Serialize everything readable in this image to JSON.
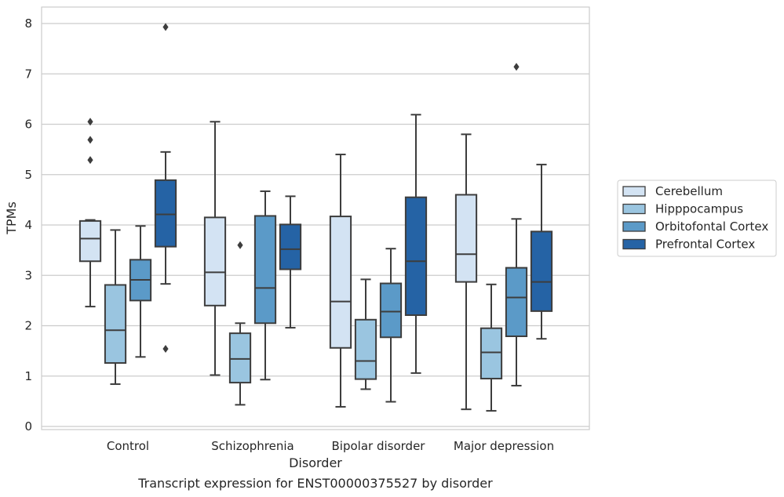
{
  "chart_data": {
    "type": "box",
    "title": "Transcript expression for ENST00000375527 by disorder",
    "xlabel": "Disorder",
    "ylabel": "TPMs",
    "ylim": [
      -0.07,
      8.3
    ],
    "yticks": [
      0,
      1,
      2,
      3,
      4,
      5,
      6,
      7,
      8
    ],
    "grid": true,
    "legend_position": "right",
    "categories": [
      "Control",
      "Schizophrenia",
      "Bipolar disorder",
      "Major depression"
    ],
    "series": [
      {
        "name": "Cerebellum",
        "color": "#d3e3f3",
        "boxes": [
          {
            "whislo": 2.38,
            "q1": 3.28,
            "med": 3.73,
            "q3": 4.08,
            "whishi": 4.1,
            "fliers": [
              6.05,
              5.69,
              5.29
            ]
          },
          {
            "whislo": 1.02,
            "q1": 2.4,
            "med": 3.06,
            "q3": 4.15,
            "whishi": 6.05,
            "fliers": []
          },
          {
            "whislo": 0.39,
            "q1": 1.56,
            "med": 2.48,
            "q3": 4.17,
            "whishi": 5.4,
            "fliers": []
          },
          {
            "whislo": 0.34,
            "q1": 2.87,
            "med": 3.42,
            "q3": 4.6,
            "whishi": 5.8,
            "fliers": []
          }
        ]
      },
      {
        "name": "Hipppocampus",
        "color": "#9ac5e0",
        "boxes": [
          {
            "whislo": 0.84,
            "q1": 1.26,
            "med": 1.91,
            "q3": 2.81,
            "whishi": 3.9,
            "fliers": []
          },
          {
            "whislo": 0.43,
            "q1": 0.87,
            "med": 1.34,
            "q3": 1.85,
            "whishi": 2.05,
            "fliers": [
              3.6
            ]
          },
          {
            "whislo": 0.74,
            "q1": 0.94,
            "med": 1.3,
            "q3": 2.12,
            "whishi": 2.92,
            "fliers": []
          },
          {
            "whislo": 0.31,
            "q1": 0.95,
            "med": 1.47,
            "q3": 1.95,
            "whishi": 2.82,
            "fliers": []
          }
        ]
      },
      {
        "name": "Orbitofontal Cortex",
        "color": "#5b9ac8",
        "boxes": [
          {
            "whislo": 1.38,
            "q1": 2.5,
            "med": 2.91,
            "q3": 3.31,
            "whishi": 3.98,
            "fliers": []
          },
          {
            "whislo": 0.93,
            "q1": 2.05,
            "med": 2.75,
            "q3": 4.18,
            "whishi": 4.67,
            "fliers": []
          },
          {
            "whislo": 0.49,
            "q1": 1.77,
            "med": 2.28,
            "q3": 2.84,
            "whishi": 3.53,
            "fliers": []
          },
          {
            "whislo": 0.81,
            "q1": 1.79,
            "med": 2.56,
            "q3": 3.15,
            "whishi": 4.12,
            "fliers": [
              7.14
            ]
          }
        ]
      },
      {
        "name": "Prefrontal Cortex",
        "color": "#2563a5",
        "boxes": [
          {
            "whislo": 2.83,
            "q1": 3.57,
            "med": 4.21,
            "q3": 4.89,
            "whishi": 5.45,
            "fliers": [
              7.93,
              1.54
            ]
          },
          {
            "whislo": 1.96,
            "q1": 3.12,
            "med": 3.52,
            "q3": 4.01,
            "whishi": 4.57,
            "fliers": []
          },
          {
            "whislo": 1.06,
            "q1": 2.21,
            "med": 3.28,
            "q3": 4.55,
            "whishi": 6.19,
            "fliers": []
          },
          {
            "whislo": 1.74,
            "q1": 2.29,
            "med": 2.87,
            "q3": 3.87,
            "whishi": 5.2,
            "fliers": []
          }
        ]
      }
    ]
  }
}
